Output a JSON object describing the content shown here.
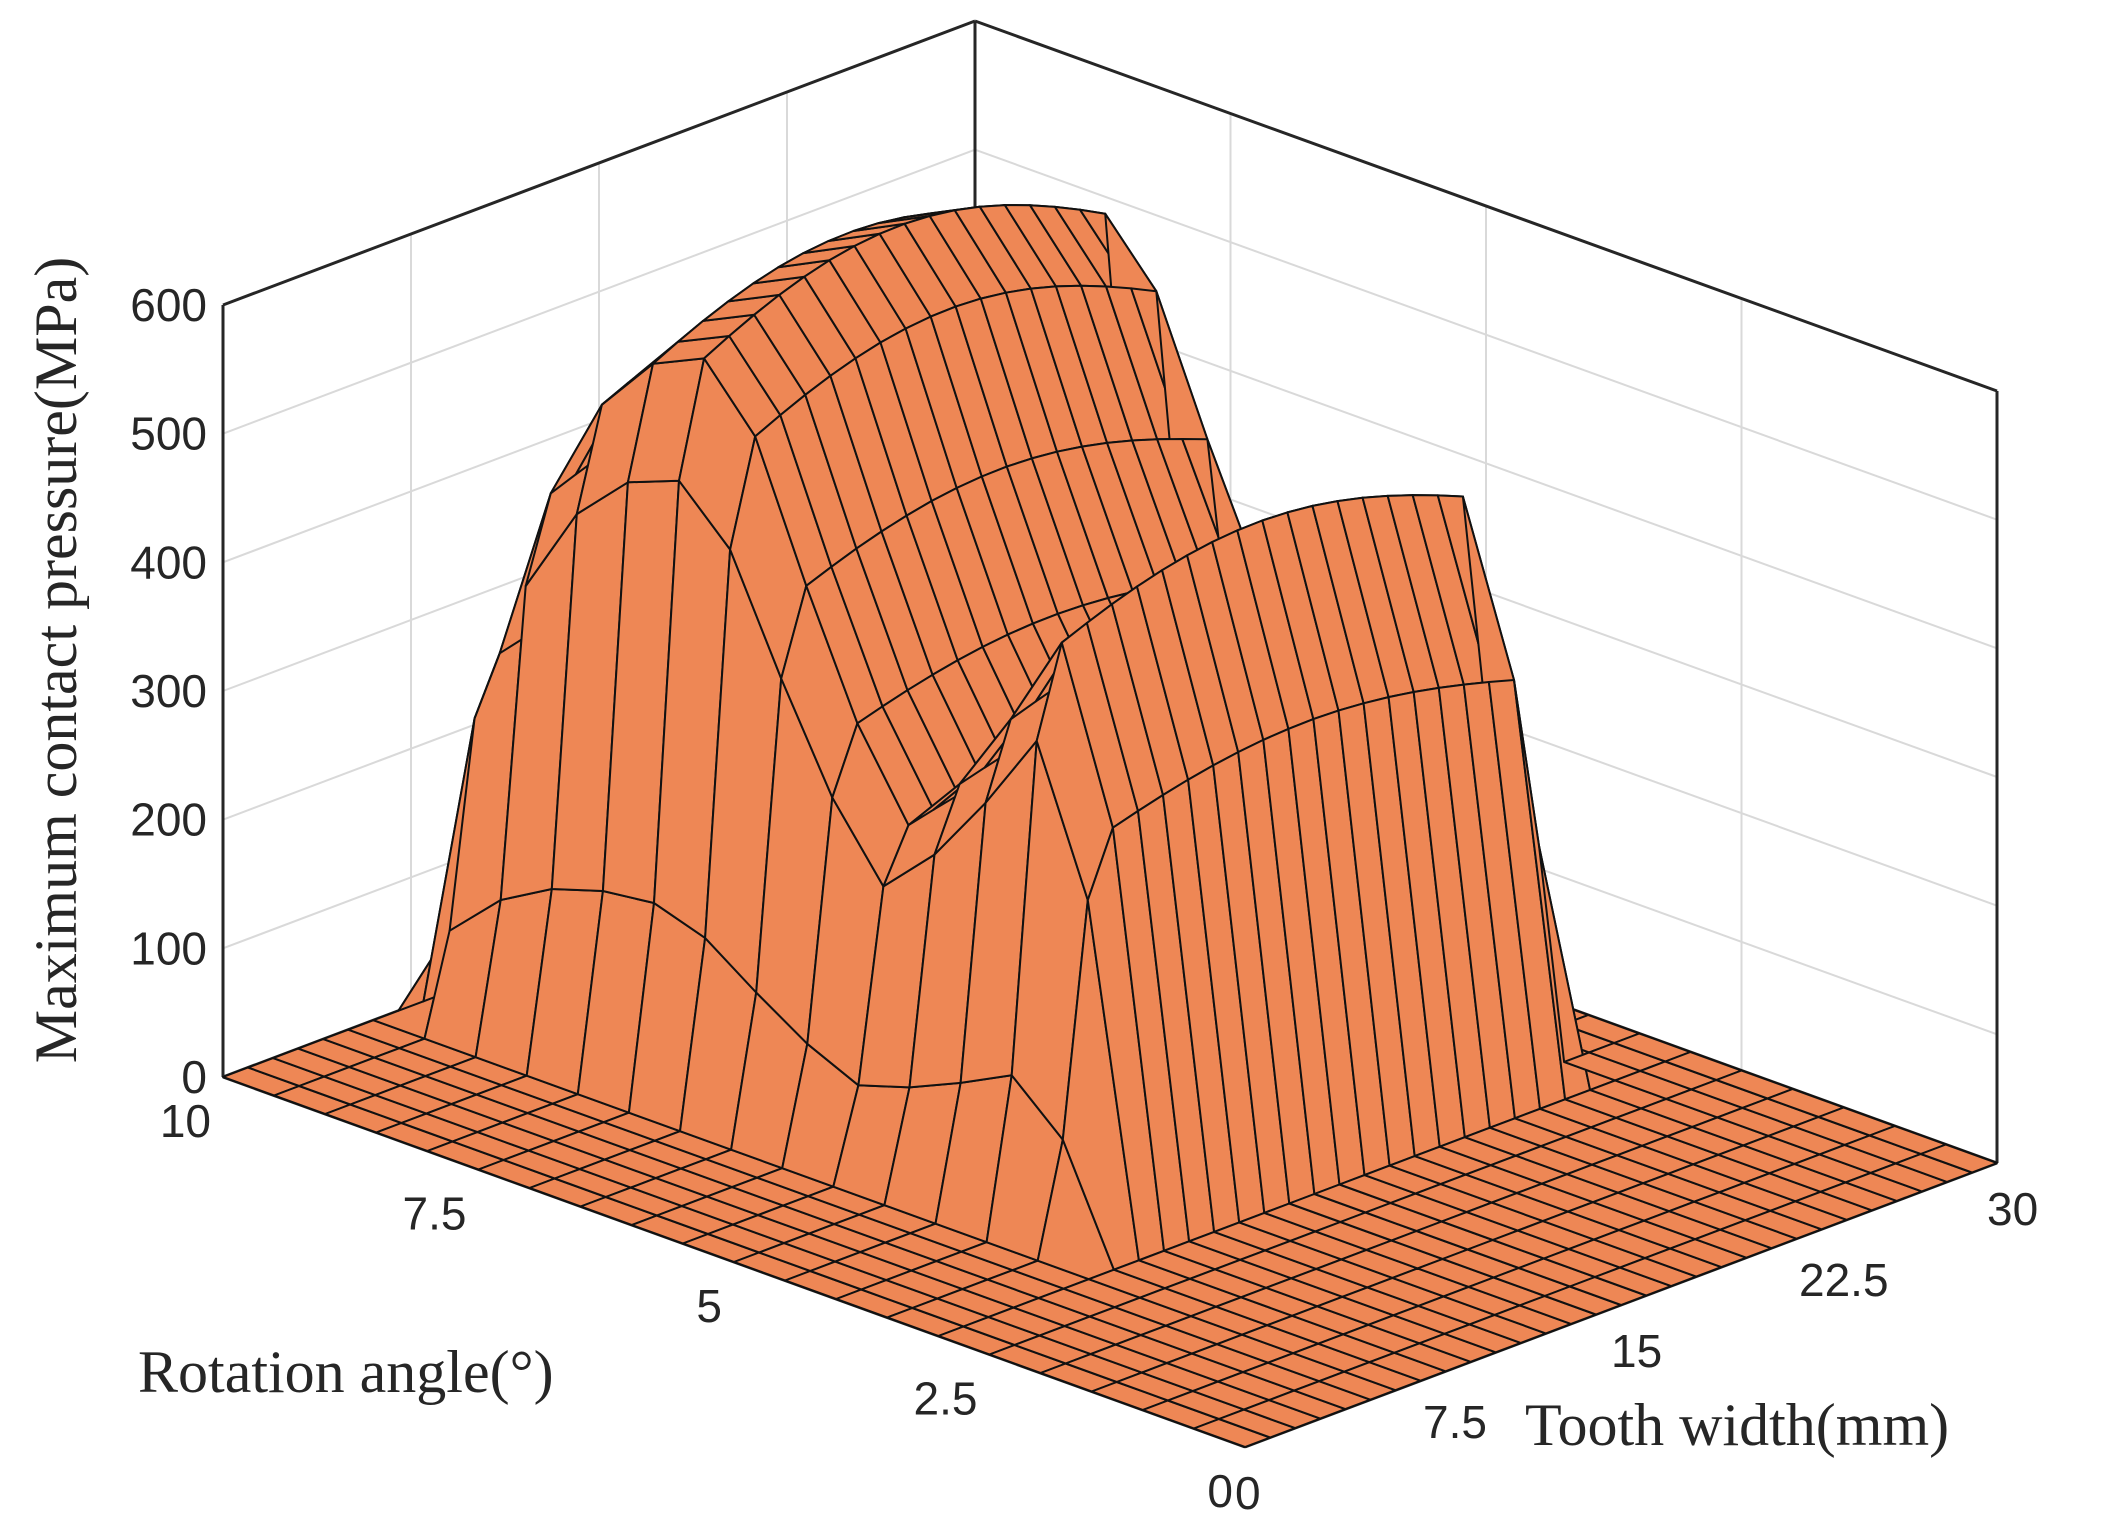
{
  "chart_data": {
    "type": "surface",
    "xlabel": "Tooth width(mm)",
    "ylabel": "Rotation angle(°)",
    "zlabel": "Maximum contact pressure(MPa)",
    "x_ticks": [
      "0",
      "7.5",
      "15",
      "22.5",
      "30"
    ],
    "y_ticks": [
      "0",
      "2.5",
      "5",
      "7.5",
      "10"
    ],
    "z_ticks": [
      "0",
      "100",
      "200",
      "300",
      "400",
      "500",
      "600"
    ],
    "xlim": [
      0,
      30
    ],
    "ylim": [
      0,
      10
    ],
    "zlim": [
      0,
      600
    ],
    "grid": true,
    "face_color": "#ee8755",
    "edge_color": "#111111",
    "band_width_start_mm": 6.5,
    "band_width_end_mm": 27,
    "rotation_angle_deg": [
      0,
      0.5,
      1,
      1.5,
      2,
      2.5,
      3,
      3.5,
      4,
      4.5,
      5,
      5.5,
      6,
      6.5,
      7,
      7.5,
      8,
      8.5,
      9,
      9.5,
      10
    ],
    "peak_pressure_MPa": [
      0,
      0,
      0,
      0,
      0,
      0,
      0,
      340,
      480,
      400,
      330,
      280,
      350,
      450,
      560,
      610,
      590,
      540,
      450,
      300,
      0
    ]
  }
}
